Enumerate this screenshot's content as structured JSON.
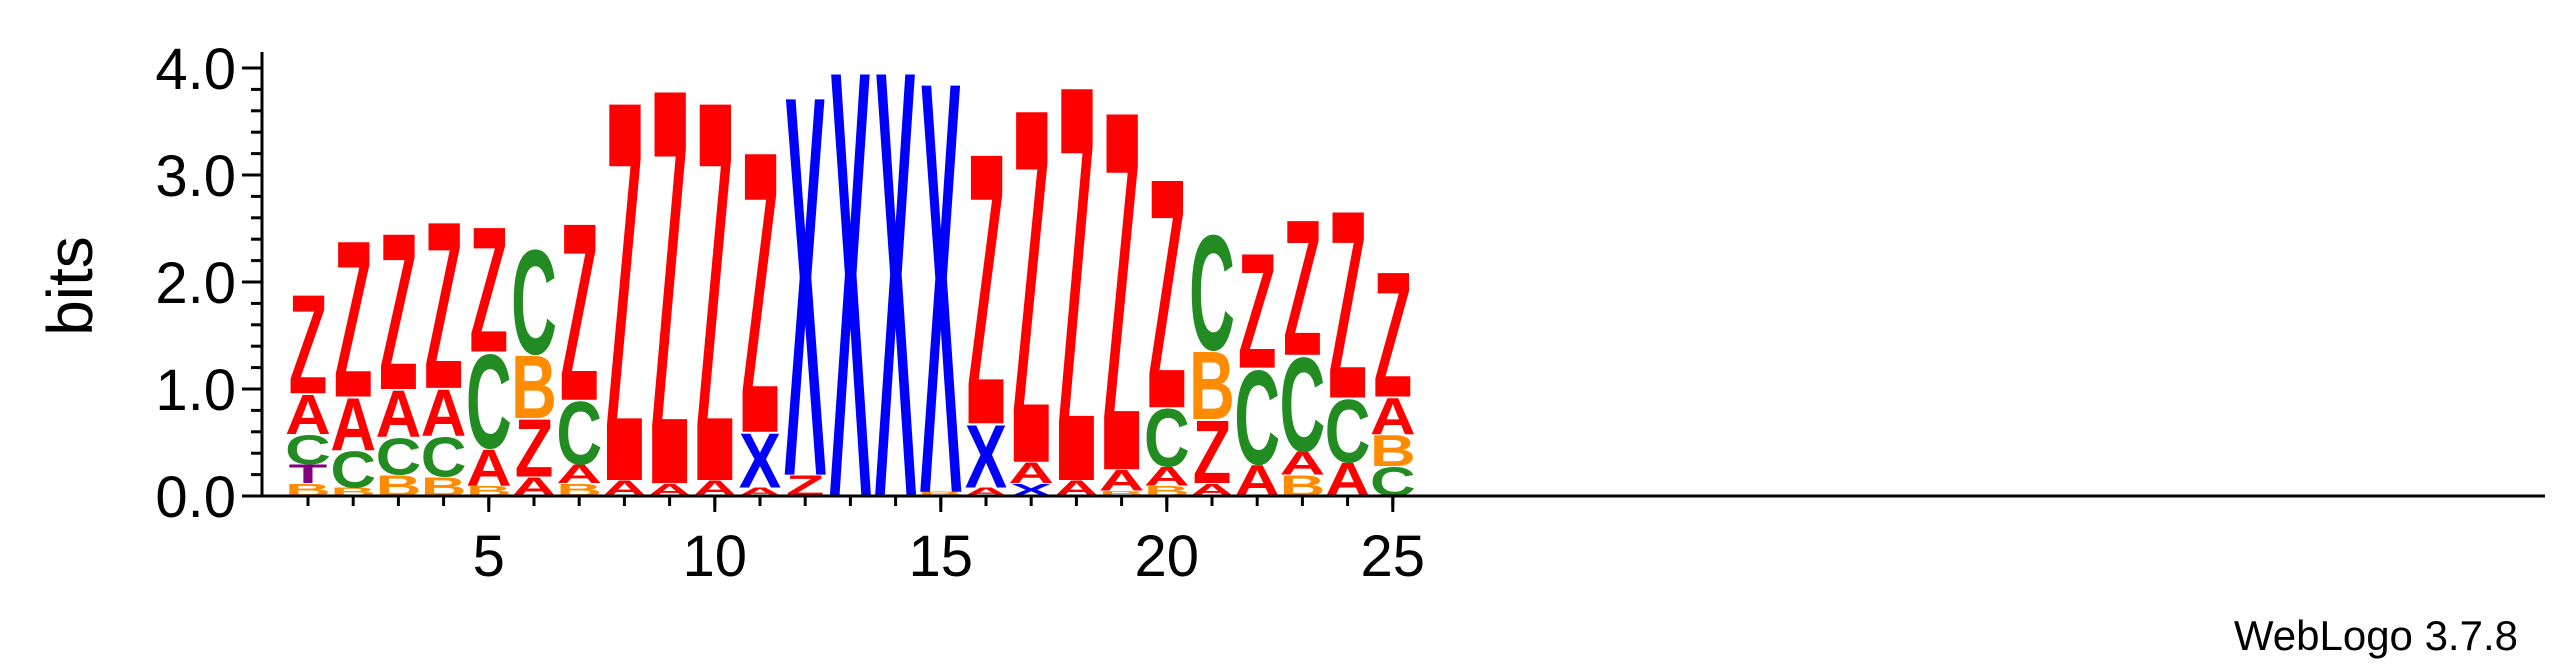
{
  "chart_data": {
    "type": "sequence-logo",
    "ylabel": "bits",
    "ylim": [
      0,
      4.0
    ],
    "y_ticks": [
      "0.0",
      "1.0",
      "2.0",
      "3.0",
      "4.0"
    ],
    "x_ticks": [
      "5",
      "10",
      "15",
      "20",
      "25"
    ],
    "x_tick_positions": [
      5,
      10,
      15,
      20,
      25
    ],
    "x_range": [
      1,
      25
    ],
    "colors": {
      "Z": "#ff0000",
      "A": "#ff0000",
      "C": "#228b22",
      "B": "#ff8c00",
      "X": "#0000ff",
      "T": "#800080"
    },
    "positions": [
      {
        "pos": 1,
        "stack": [
          {
            "l": "B",
            "h": 0.12
          },
          {
            "l": "T",
            "h": 0.18
          },
          {
            "l": "C",
            "h": 0.28
          },
          {
            "l": "A",
            "h": 0.38
          },
          {
            "l": "Z",
            "h": 0.95
          }
        ]
      },
      {
        "pos": 2,
        "stack": [
          {
            "l": "B",
            "h": 0.08
          },
          {
            "l": "C",
            "h": 0.35
          },
          {
            "l": "A",
            "h": 0.5
          },
          {
            "l": "Z",
            "h": 1.5
          }
        ]
      },
      {
        "pos": 3,
        "stack": [
          {
            "l": "B",
            "h": 0.2
          },
          {
            "l": "C",
            "h": 0.35
          },
          {
            "l": "A",
            "h": 0.45
          },
          {
            "l": "Z",
            "h": 1.5
          }
        ]
      },
      {
        "pos": 4,
        "stack": [
          {
            "l": "B",
            "h": 0.18
          },
          {
            "l": "C",
            "h": 0.38
          },
          {
            "l": "A",
            "h": 0.45
          },
          {
            "l": "Z",
            "h": 1.6
          }
        ]
      },
      {
        "pos": 5,
        "stack": [
          {
            "l": "B",
            "h": 0.1
          },
          {
            "l": "A",
            "h": 0.35
          },
          {
            "l": "C",
            "h": 0.9
          },
          {
            "l": "Z",
            "h": 1.2
          }
        ]
      },
      {
        "pos": 6,
        "stack": [
          {
            "l": "A",
            "h": 0.18
          },
          {
            "l": "Z",
            "h": 0.55
          },
          {
            "l": "B",
            "h": 0.6
          },
          {
            "l": "C",
            "h": 1.0
          }
        ]
      },
      {
        "pos": 7,
        "stack": [
          {
            "l": "B",
            "h": 0.12
          },
          {
            "l": "A",
            "h": 0.18
          },
          {
            "l": "C",
            "h": 0.6
          },
          {
            "l": "Z",
            "h": 1.7
          }
        ]
      },
      {
        "pos": 8,
        "stack": [
          {
            "l": "A",
            "h": 0.15
          },
          {
            "l": "Z",
            "h": 3.65
          }
        ]
      },
      {
        "pos": 9,
        "stack": [
          {
            "l": "A",
            "h": 0.12
          },
          {
            "l": "Z",
            "h": 3.8
          }
        ]
      },
      {
        "pos": 10,
        "stack": [
          {
            "l": "A",
            "h": 0.15
          },
          {
            "l": "Z",
            "h": 3.65
          }
        ]
      },
      {
        "pos": 11,
        "stack": [
          {
            "l": "A",
            "h": 0.08
          },
          {
            "l": "X",
            "h": 0.52
          },
          {
            "l": "Z",
            "h": 2.7
          }
        ]
      },
      {
        "pos": 12,
        "stack": [
          {
            "l": "Z",
            "h": 0.2
          },
          {
            "l": "X",
            "h": 3.65
          }
        ]
      },
      {
        "pos": 13,
        "stack": [
          {
            "l": "X",
            "h": 4.1
          }
        ]
      },
      {
        "pos": 14,
        "stack": [
          {
            "l": "X",
            "h": 4.1
          }
        ]
      },
      {
        "pos": 15,
        "stack": [
          {
            "l": "B",
            "h": 0.04
          },
          {
            "l": "X",
            "h": 3.95
          }
        ]
      },
      {
        "pos": 16,
        "stack": [
          {
            "l": "A",
            "h": 0.08
          },
          {
            "l": "X",
            "h": 0.6
          },
          {
            "l": "Z",
            "h": 2.6
          }
        ]
      },
      {
        "pos": 17,
        "stack": [
          {
            "l": "X",
            "h": 0.12
          },
          {
            "l": "A",
            "h": 0.2
          },
          {
            "l": "Z",
            "h": 3.4
          }
        ]
      },
      {
        "pos": 18,
        "stack": [
          {
            "l": "A",
            "h": 0.15
          },
          {
            "l": "Z",
            "h": 3.8
          }
        ]
      },
      {
        "pos": 19,
        "stack": [
          {
            "l": "B",
            "h": 0.05
          },
          {
            "l": "A",
            "h": 0.2
          },
          {
            "l": "Z",
            "h": 3.45
          }
        ]
      },
      {
        "pos": 20,
        "stack": [
          {
            "l": "B",
            "h": 0.1
          },
          {
            "l": "A",
            "h": 0.18
          },
          {
            "l": "C",
            "h": 0.55
          },
          {
            "l": "Z",
            "h": 2.2
          }
        ]
      },
      {
        "pos": 21,
        "stack": [
          {
            "l": "A",
            "h": 0.12
          },
          {
            "l": "Z",
            "h": 0.6
          },
          {
            "l": "B",
            "h": 0.65
          },
          {
            "l": "C",
            "h": 1.1
          }
        ]
      },
      {
        "pos": 22,
        "stack": [
          {
            "l": "A",
            "h": 0.3
          },
          {
            "l": "C",
            "h": 0.9
          },
          {
            "l": "Z",
            "h": 1.1
          }
        ]
      },
      {
        "pos": 23,
        "stack": [
          {
            "l": "B",
            "h": 0.2
          },
          {
            "l": "A",
            "h": 0.22
          },
          {
            "l": "C",
            "h": 0.9
          },
          {
            "l": "Z",
            "h": 1.3
          }
        ]
      },
      {
        "pos": 24,
        "stack": [
          {
            "l": "A",
            "h": 0.32
          },
          {
            "l": "C",
            "h": 0.6
          },
          {
            "l": "Z",
            "h": 1.8
          }
        ]
      },
      {
        "pos": 25,
        "stack": [
          {
            "l": "C",
            "h": 0.28
          },
          {
            "l": "B",
            "h": 0.3
          },
          {
            "l": "A",
            "h": 0.35
          },
          {
            "l": "Z",
            "h": 1.2
          }
        ]
      }
    ]
  },
  "footer": {
    "credit": "WebLogo 3.7.8"
  }
}
